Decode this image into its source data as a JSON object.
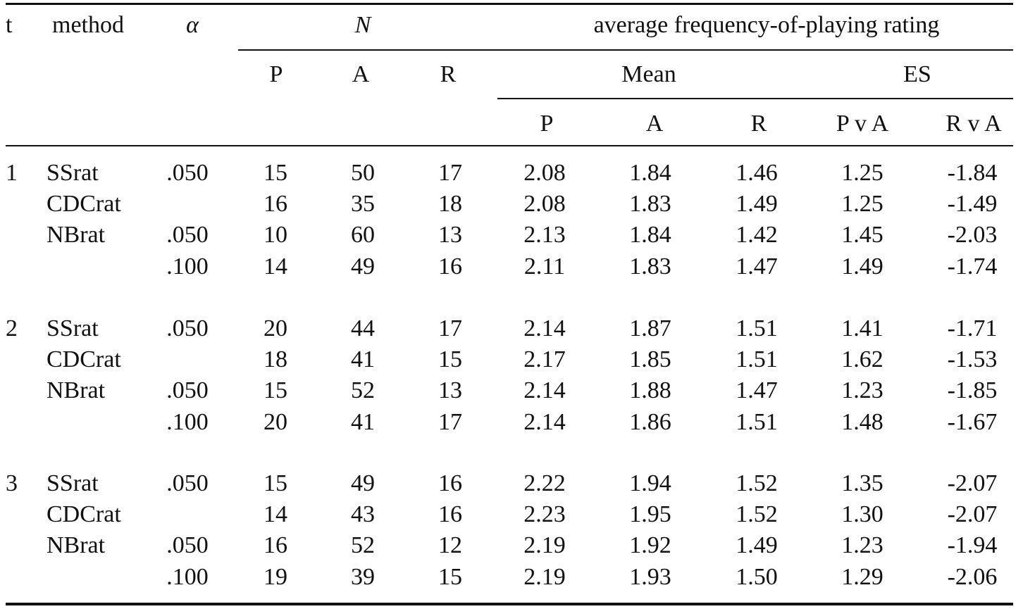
{
  "header": {
    "t": "t",
    "method": "method",
    "alpha": "α",
    "n": "N",
    "rating": "average frequency-of-playing rating",
    "mean": "Mean",
    "es": "ES",
    "n_cols": [
      "P",
      "A",
      "R"
    ],
    "mean_cols": [
      "P",
      "A",
      "R"
    ],
    "es_cols": [
      "P v A",
      "R v A"
    ]
  },
  "groups": [
    {
      "t": "1",
      "rows": [
        {
          "method": "SSrat",
          "alpha": ".050",
          "nP": "15",
          "nA": "50",
          "nR": "17",
          "mP": "2.08",
          "mA": "1.84",
          "mR": "1.46",
          "esPA": "1.25",
          "esRA": "-1.84"
        },
        {
          "method": "CDCrat",
          "alpha": "",
          "nP": "16",
          "nA": "35",
          "nR": "18",
          "mP": "2.08",
          "mA": "1.83",
          "mR": "1.49",
          "esPA": "1.25",
          "esRA": "-1.49"
        },
        {
          "method": "NBrat",
          "alpha": ".050",
          "nP": "10",
          "nA": "60",
          "nR": "13",
          "mP": "2.13",
          "mA": "1.84",
          "mR": "1.42",
          "esPA": "1.45",
          "esRA": "-2.03"
        },
        {
          "method": "",
          "alpha": ".100",
          "nP": "14",
          "nA": "49",
          "nR": "16",
          "mP": "2.11",
          "mA": "1.83",
          "mR": "1.47",
          "esPA": "1.49",
          "esRA": "-1.74"
        }
      ]
    },
    {
      "t": "2",
      "rows": [
        {
          "method": "SSrat",
          "alpha": ".050",
          "nP": "20",
          "nA": "44",
          "nR": "17",
          "mP": "2.14",
          "mA": "1.87",
          "mR": "1.51",
          "esPA": "1.41",
          "esRA": "-1.71"
        },
        {
          "method": "CDCrat",
          "alpha": "",
          "nP": "18",
          "nA": "41",
          "nR": "15",
          "mP": "2.17",
          "mA": "1.85",
          "mR": "1.51",
          "esPA": "1.62",
          "esRA": "-1.53"
        },
        {
          "method": "NBrat",
          "alpha": ".050",
          "nP": "15",
          "nA": "52",
          "nR": "13",
          "mP": "2.14",
          "mA": "1.88",
          "mR": "1.47",
          "esPA": "1.23",
          "esRA": "-1.85"
        },
        {
          "method": "",
          "alpha": ".100",
          "nP": "20",
          "nA": "41",
          "nR": "17",
          "mP": "2.14",
          "mA": "1.86",
          "mR": "1.51",
          "esPA": "1.48",
          "esRA": "-1.67"
        }
      ]
    },
    {
      "t": "3",
      "rows": [
        {
          "method": "SSrat",
          "alpha": ".050",
          "nP": "15",
          "nA": "49",
          "nR": "16",
          "mP": "2.22",
          "mA": "1.94",
          "mR": "1.52",
          "esPA": "1.35",
          "esRA": "-2.07"
        },
        {
          "method": "CDCrat",
          "alpha": "",
          "nP": "14",
          "nA": "43",
          "nR": "16",
          "mP": "2.23",
          "mA": "1.95",
          "mR": "1.52",
          "esPA": "1.30",
          "esRA": "-2.07"
        },
        {
          "method": "NBrat",
          "alpha": ".050",
          "nP": "16",
          "nA": "52",
          "nR": "12",
          "mP": "2.19",
          "mA": "1.92",
          "mR": "1.49",
          "esPA": "1.23",
          "esRA": "-1.94"
        },
        {
          "method": "",
          "alpha": ".100",
          "nP": "19",
          "nA": "39",
          "nR": "15",
          "mP": "2.19",
          "mA": "1.93",
          "mR": "1.50",
          "esPA": "1.29",
          "esRA": "-2.06"
        }
      ]
    }
  ]
}
